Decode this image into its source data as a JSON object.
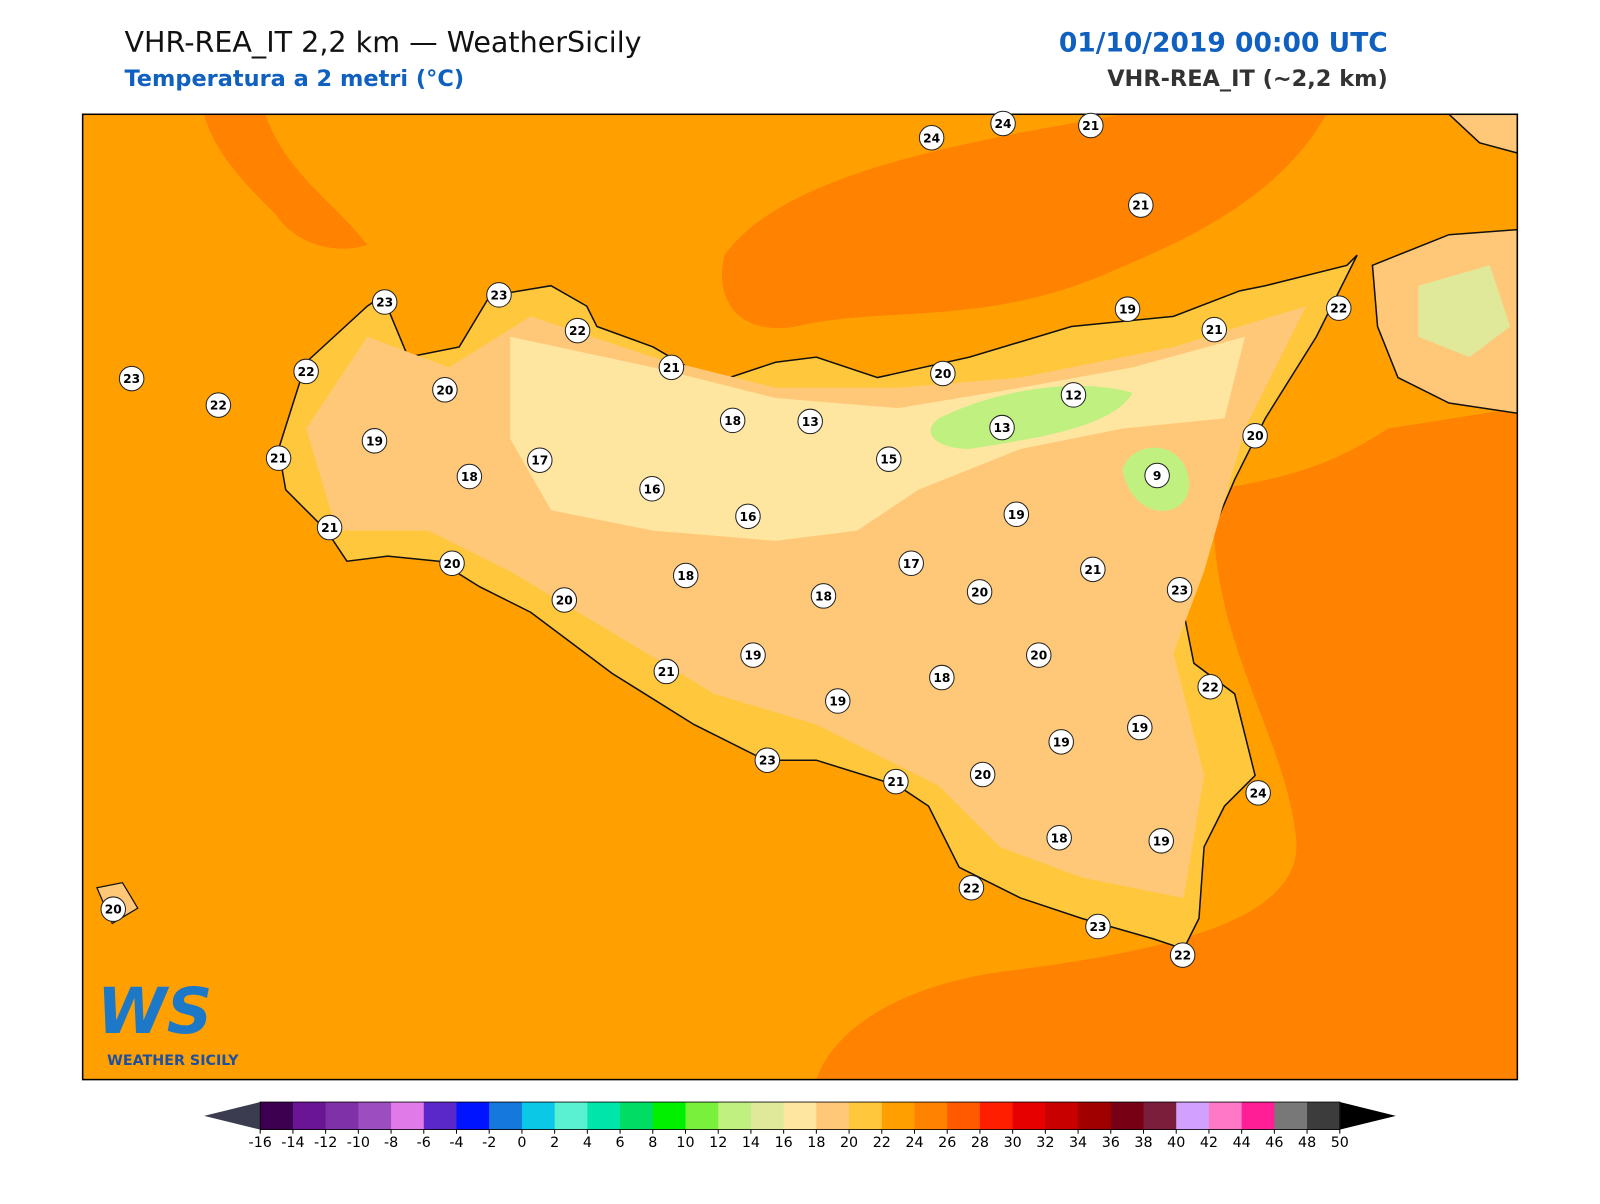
{
  "header": {
    "title": "VHR-REA_IT 2,2 km — WeatherSicily",
    "subtitle": "Temperatura a 2 metri (°C)",
    "datetime": "01/10/2019 00:00 UTC",
    "model": "VHR-REA_IT (~2,2 km)"
  },
  "stations": [
    24,
    24,
    21,
    21,
    23,
    23,
    22,
    21,
    22,
    23,
    22,
    20,
    19,
    21,
    18,
    17,
    16,
    18,
    13,
    15,
    16,
    21,
    20,
    20,
    18,
    18,
    17,
    20,
    13,
    12,
    19,
    21,
    22,
    20,
    9,
    19,
    21,
    23,
    20,
    20,
    18,
    19,
    21,
    19,
    23,
    21,
    20,
    19,
    19,
    22,
    24,
    18,
    19,
    22,
    23,
    22,
    20
  ],
  "colorbar": {
    "ticks": [
      -16,
      -14,
      -12,
      -10,
      -8,
      -6,
      -4,
      -2,
      0,
      2,
      4,
      6,
      8,
      10,
      12,
      14,
      16,
      18,
      20,
      22,
      24,
      26,
      28,
      30,
      32,
      34,
      36,
      38,
      40,
      42,
      44,
      46,
      48,
      50
    ],
    "colors": [
      "#3d0050",
      "#6a1496",
      "#7f32a8",
      "#9c4dbf",
      "#e07ae8",
      "#5a28c8",
      "#0014ff",
      "#1478dc",
      "#0ac8e6",
      "#5af0d2",
      "#00e6aa",
      "#00dc64",
      "#00f000",
      "#78f03c",
      "#c0f080",
      "#e0e89a",
      "#ffe6a0",
      "#ffc878",
      "#ffc83c",
      "#ffa000",
      "#ff8200",
      "#ff5a00",
      "#ff1e00",
      "#e60000",
      "#c80000",
      "#a00000",
      "#780014",
      "#7a1e3c",
      "#d2a0ff",
      "#ff78c8",
      "#ff1e96",
      "#787878",
      "#3c3c3c"
    ],
    "extend_colors": [
      "#3c3c50",
      "#000000"
    ]
  },
  "logo": {
    "mark": "WS",
    "name": "WEATHER SICILY"
  }
}
